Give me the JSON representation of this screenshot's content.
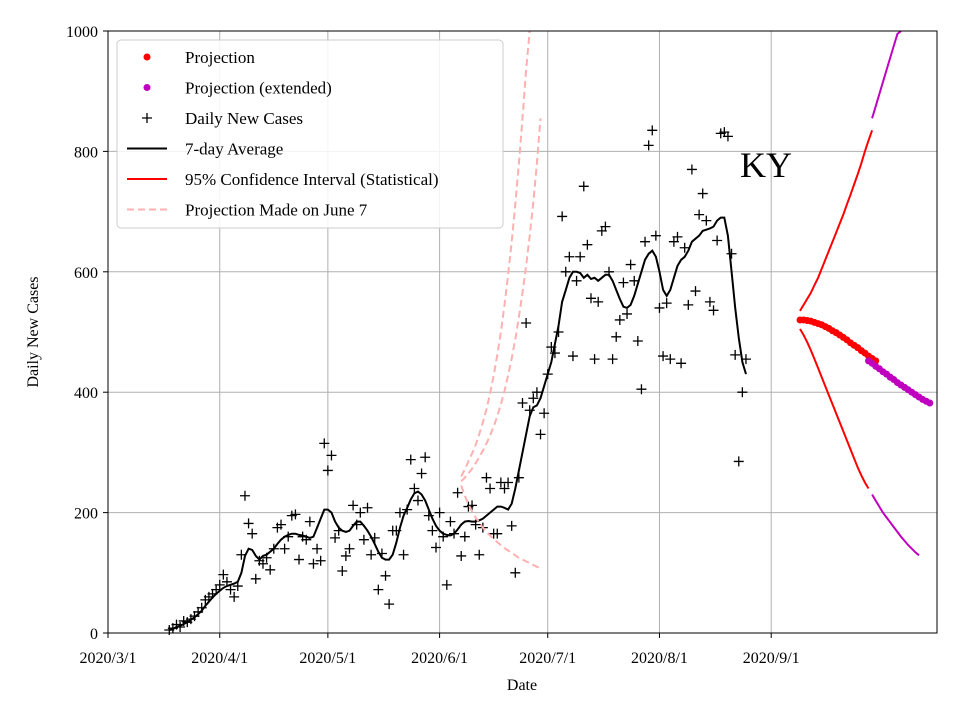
{
  "chart_data": {
    "type": "scatter",
    "panel_label": "KY",
    "xlabel": "Date",
    "ylabel": "Daily New Cases",
    "xlim": [
      "2020-03-01",
      "2020-10-17"
    ],
    "ylim": [
      0,
      1000
    ],
    "x_ticks": [
      "2020-03-01",
      "2020-04-01",
      "2020-05-01",
      "2020-06-01",
      "2020-07-01",
      "2020-08-01",
      "2020-09-01"
    ],
    "x_tick_labels": [
      "2020/3/1",
      "2020/4/1",
      "2020/5/1",
      "2020/6/1",
      "2020/7/1",
      "2020/8/1",
      "2020/9/1"
    ],
    "y_ticks": [
      0,
      200,
      400,
      600,
      800,
      1000
    ],
    "y_tick_labels": [
      "0",
      "200",
      "400",
      "600",
      "800",
      "1000"
    ],
    "grid": true,
    "legend_position": "top-left",
    "legend": [
      {
        "label": "Projection",
        "marker": "dot",
        "color": "#ff0000"
      },
      {
        "label": "Projection (extended)",
        "marker": "dot",
        "color": "#bf00bf"
      },
      {
        "label": "Daily New Cases",
        "marker": "plus",
        "color": "#000000"
      },
      {
        "label": "7-day Average",
        "marker": "line",
        "color": "#000000"
      },
      {
        "label": "95% Confidence Interval (Statistical)",
        "marker": "line",
        "color": "#ff0000"
      },
      {
        "label": "Projection Made on June 7",
        "marker": "dashed",
        "color": "#ffb0b0"
      }
    ],
    "series": [
      {
        "name": "Daily New Cases",
        "style": "plus",
        "color": "#000000",
        "start_date": "2020-03-18",
        "values": [
          5,
          8,
          14,
          10,
          20,
          18,
          23,
          28,
          35,
          42,
          55,
          60,
          65,
          72,
          80,
          97,
          85,
          72,
          60,
          78,
          130,
          228,
          182,
          165,
          90,
          120,
          115,
          125,
          105,
          140,
          175,
          180,
          140,
          160,
          195,
          197,
          122,
          160,
          155,
          185,
          115,
          140,
          120,
          315,
          270,
          295,
          158,
          170,
          103,
          128,
          140,
          212,
          180,
          200,
          155,
          208,
          130,
          158,
          72,
          132,
          95,
          48,
          170,
          170,
          200,
          130,
          205,
          288,
          240,
          220,
          265,
          292,
          195,
          170,
          142,
          200,
          160,
          80,
          185,
          165,
          233,
          128,
          160,
          210,
          212,
          180,
          130,
          175,
          258,
          240,
          165,
          165,
          250,
          240,
          250,
          178,
          100,
          258,
          382,
          515,
          370,
          390,
          400,
          330,
          365,
          430,
          475,
          465,
          500,
          692,
          600,
          625,
          460,
          585,
          625,
          742,
          645,
          556,
          455,
          550,
          668,
          675,
          600,
          455,
          492,
          520,
          582,
          530,
          612,
          585,
          485,
          405,
          650,
          810,
          835,
          660,
          540,
          460,
          548,
          455,
          650,
          658,
          448,
          640,
          545,
          770,
          568,
          695,
          730,
          685,
          550,
          536,
          652,
          830,
          832,
          825,
          630,
          462,
          285,
          400,
          455
        ]
      },
      {
        "name": "7-day Average",
        "style": "line",
        "color": "#000000",
        "start_date": "2020-03-18",
        "values": [
          5,
          7,
          10,
          12,
          15,
          18,
          22,
          26,
          31,
          37,
          45,
          52,
          59,
          65,
          70,
          75,
          78,
          80,
          82,
          85,
          100,
          128,
          140,
          138,
          128,
          122,
          128,
          130,
          135,
          140,
          148,
          155,
          160,
          163,
          165,
          165,
          163,
          162,
          160,
          158,
          160,
          175,
          190,
          205,
          205,
          200,
          185,
          175,
          170,
          168,
          170,
          178,
          185,
          185,
          178,
          170,
          160,
          148,
          135,
          125,
          122,
          122,
          130,
          150,
          175,
          195,
          208,
          222,
          232,
          235,
          230,
          220,
          205,
          190,
          178,
          170,
          165,
          163,
          162,
          165,
          172,
          180,
          185,
          186,
          185,
          185,
          187,
          190,
          195,
          200,
          205,
          210,
          210,
          208,
          205,
          215,
          240,
          270,
          300,
          330,
          360,
          375,
          378,
          390,
          410,
          430,
          450,
          480,
          510,
          550,
          570,
          590,
          600,
          600,
          598,
          590,
          595,
          588,
          590,
          585,
          590,
          595,
          595,
          585,
          570,
          555,
          542,
          540,
          545,
          560,
          580,
          600,
          620,
          630,
          635,
          625,
          600,
          570,
          560,
          570,
          590,
          610,
          620,
          625,
          635,
          650,
          655,
          660,
          668,
          670,
          672,
          675,
          685,
          690,
          690,
          660,
          600,
          540,
          490,
          450,
          430
        ]
      },
      {
        "name": "Projection",
        "style": "dot",
        "color": "#ff0000",
        "start_date": "2020-09-09",
        "values": [
          520,
          520,
          519,
          518,
          516,
          514,
          512,
          509,
          506,
          502,
          499,
          495,
          491,
          487,
          482,
          478,
          474,
          469,
          465,
          460,
          456,
          452
        ]
      },
      {
        "name": "Projection (extended)",
        "style": "dot",
        "color": "#bf00bf",
        "start_date": "2020-09-28",
        "values": [
          452,
          448,
          443,
          439,
          434,
          430,
          425,
          421,
          416,
          412,
          408,
          404,
          400,
          396,
          392,
          388,
          385,
          382
        ]
      },
      {
        "name": "95% Confidence Interval (Statistical) upper",
        "style": "line",
        "color": "#ff0000",
        "start_date": "2020-09-09",
        "values": [
          535,
          545,
          555,
          565,
          578,
          590,
          605,
          620,
          635,
          650,
          665,
          680,
          695,
          712,
          728,
          745,
          762,
          780,
          800,
          818,
          835
        ]
      },
      {
        "name": "95% Confidence Interval (Statistical) lower",
        "style": "line",
        "color": "#ff0000",
        "start_date": "2020-09-09",
        "values": [
          505,
          495,
          483,
          470,
          455,
          440,
          425,
          410,
          395,
          380,
          365,
          350,
          335,
          320,
          305,
          290,
          275,
          262,
          250,
          240
        ]
      },
      {
        "name": "95% Confidence Interval extended upper",
        "style": "line",
        "color": "#bf00bf",
        "start_date": "2020-09-29",
        "values": [
          855,
          875,
          895,
          915,
          935,
          955,
          975,
          995,
          1015
        ]
      },
      {
        "name": "95% Confidence Interval extended lower",
        "style": "line",
        "color": "#bf00bf",
        "start_date": "2020-09-29",
        "values": [
          230,
          220,
          210,
          200,
          192,
          184,
          176,
          168,
          160,
          153,
          146,
          140,
          134,
          129
        ]
      },
      {
        "name": "Projection Made on June 7 upper",
        "style": "dashed",
        "color": "#ffb0b0",
        "start_date": "2020-06-07",
        "values": [
          260,
          272,
          285,
          298,
          312,
          330,
          350,
          372,
          398,
          428,
          462,
          500,
          545,
          595,
          650,
          712,
          780,
          855,
          935,
          1000
        ]
      },
      {
        "name": "Projection Made on June 7 middle",
        "style": "dashed",
        "color": "#ffb0b0",
        "start_date": "2020-06-07",
        "values": [
          252,
          258,
          265,
          273,
          282,
          292,
          303,
          315,
          328,
          343,
          360,
          380,
          402,
          428,
          456,
          488,
          525,
          565,
          610,
          660,
          715,
          780,
          855
        ]
      },
      {
        "name": "Projection Made on June 7 lower",
        "style": "dashed",
        "color": "#ffb0b0",
        "start_date": "2020-06-07",
        "values": [
          245,
          228,
          214,
          202,
          192,
          183,
          175,
          168,
          162,
          156,
          151,
          146,
          141,
          137,
          133,
          129,
          125,
          122,
          119,
          116,
          113,
          110,
          108
        ]
      }
    ]
  }
}
